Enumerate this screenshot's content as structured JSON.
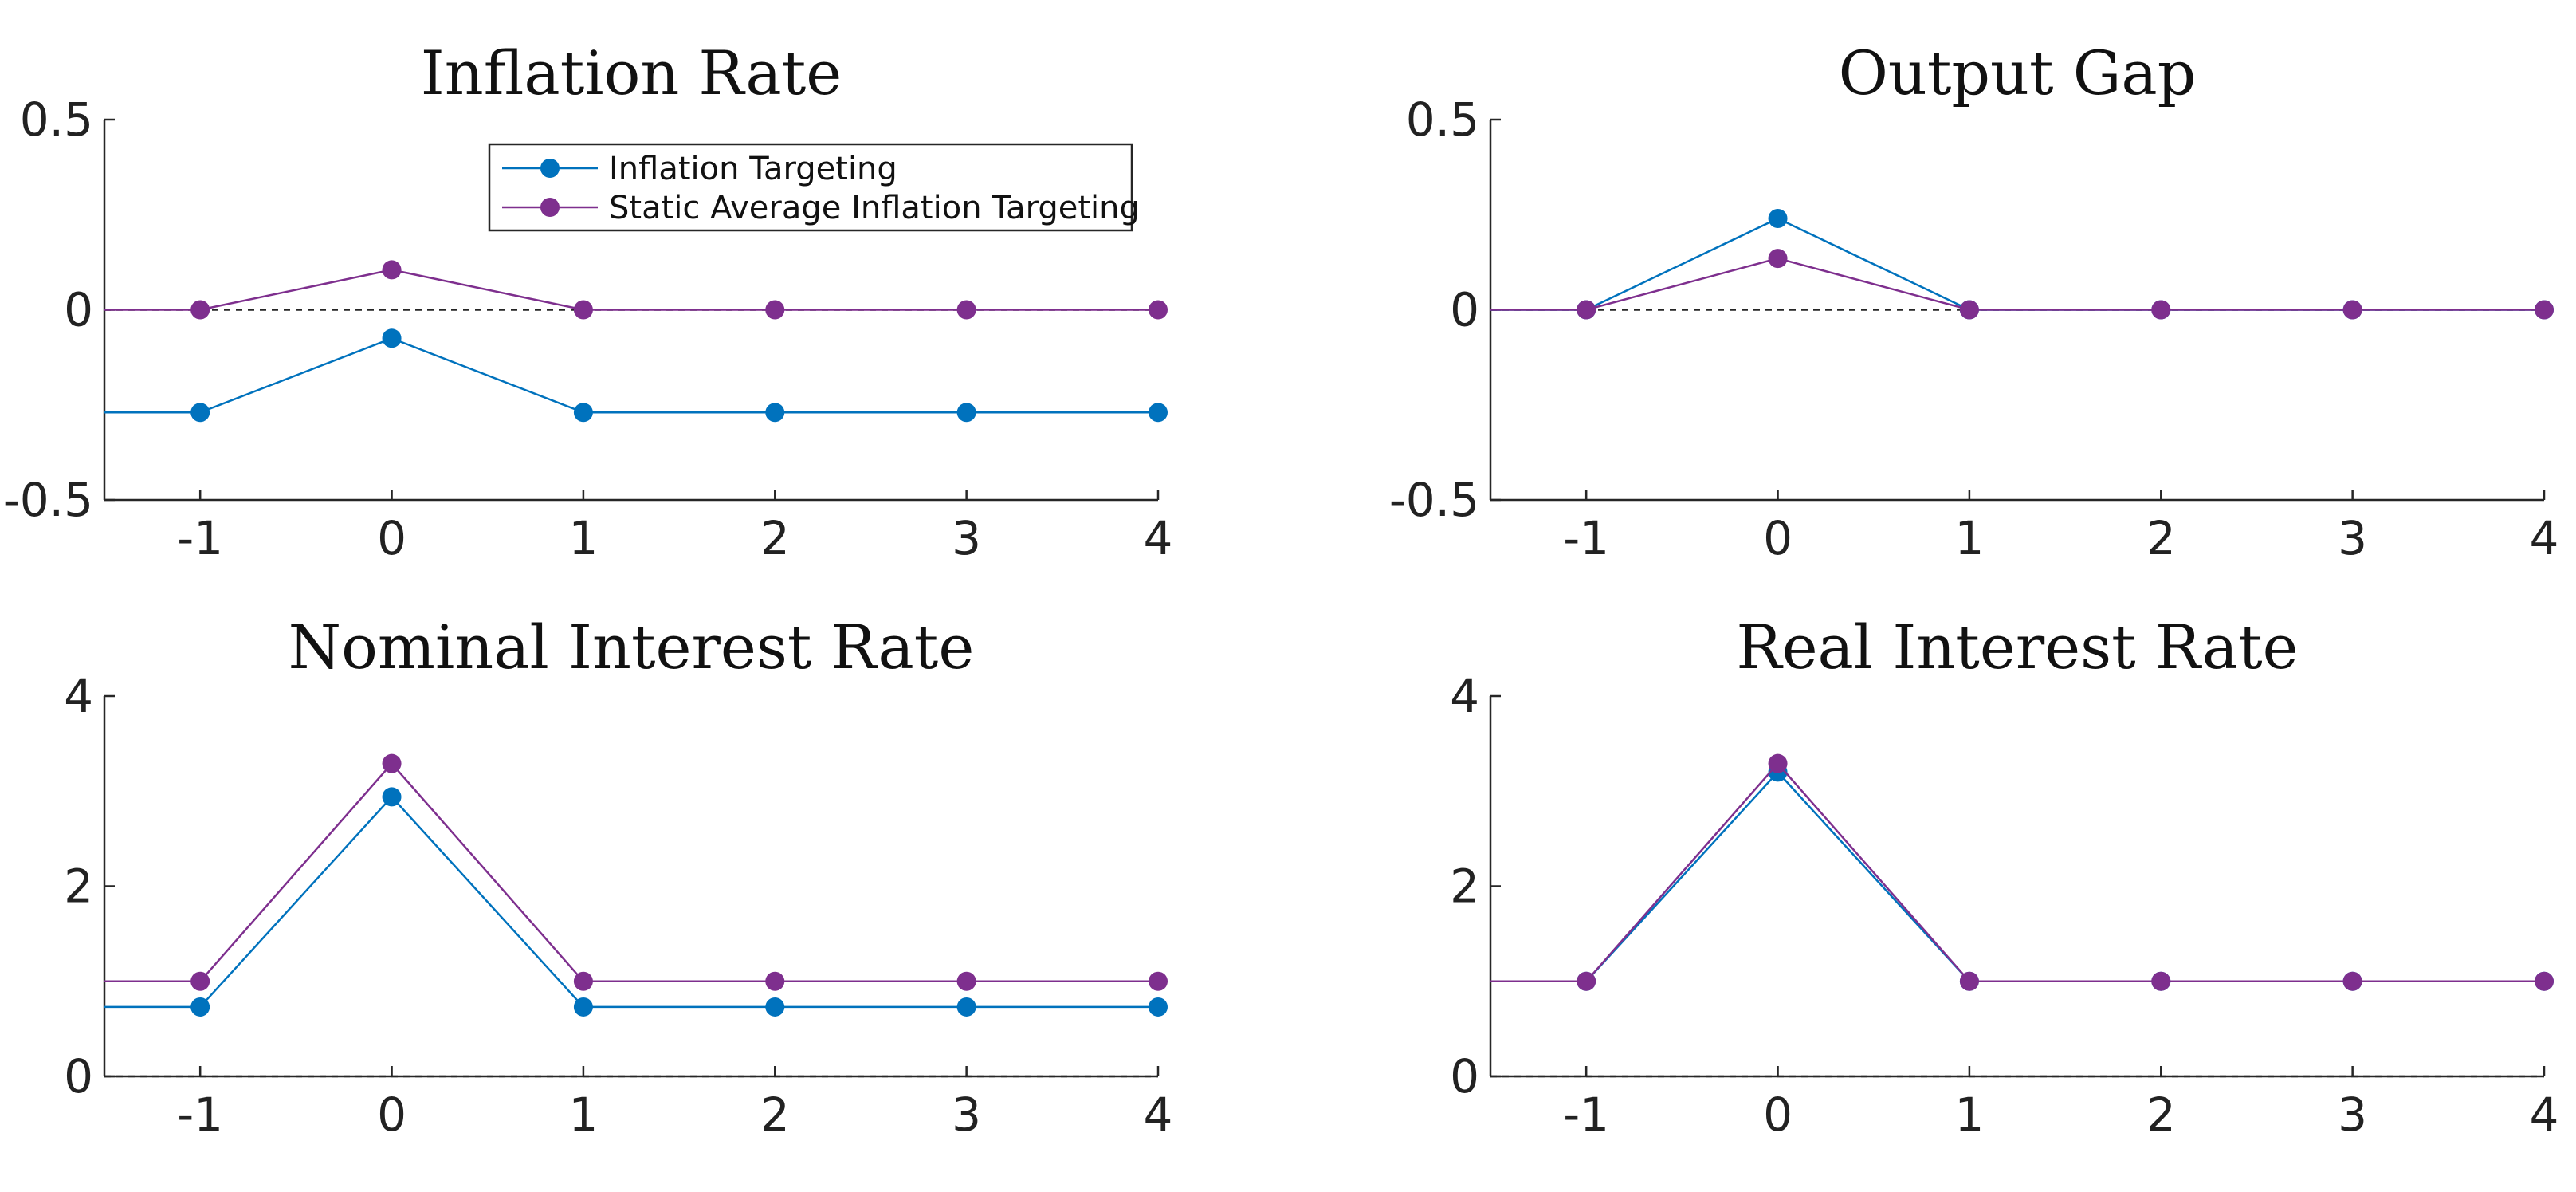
{
  "colors": {
    "inflation_targeting": "#0072BD",
    "static_average": "#7E2F8E"
  },
  "legend": {
    "entries": [
      {
        "label": "Inflation Targeting",
        "color": "#0072BD"
      },
      {
        "label": "Static Average Inflation Targeting",
        "color": "#7E2F8E"
      }
    ],
    "location": "top-right"
  },
  "chart_data": [
    {
      "type": "line",
      "title": "Inflation Rate",
      "xlabel": "",
      "ylabel": "",
      "x": [
        -1,
        0,
        1,
        2,
        3,
        4
      ],
      "xlim": [
        -1.5,
        4
      ],
      "ylim": [
        -0.5,
        0.5
      ],
      "xticks": [
        "-1",
        "0",
        "1",
        "2",
        "3",
        "4"
      ],
      "yticks": [
        {
          "value": 0.5,
          "label": "0.5"
        },
        {
          "value": 0,
          "label": "0"
        },
        {
          "value": -0.5,
          "label": "-0.5"
        }
      ],
      "zero_line": 0,
      "series": [
        {
          "name": "Inflation Targeting",
          "color": "#0072BD",
          "start": -0.27,
          "values": [
            -0.27,
            -0.075,
            -0.27,
            -0.27,
            -0.27,
            -0.27
          ]
        },
        {
          "name": "Static Average Inflation Targeting",
          "color": "#7E2F8E",
          "start": 0,
          "values": [
            0,
            0.105,
            0,
            0,
            0,
            0
          ]
        }
      ]
    },
    {
      "type": "line",
      "title": "Output Gap",
      "xlabel": "",
      "ylabel": "",
      "x": [
        -1,
        0,
        1,
        2,
        3,
        4
      ],
      "xlim": [
        -1.5,
        4
      ],
      "ylim": [
        -0.5,
        0.5
      ],
      "xticks": [
        "-1",
        "0",
        "1",
        "2",
        "3",
        "4"
      ],
      "yticks": [
        {
          "value": 0.5,
          "label": "0.5"
        },
        {
          "value": 0,
          "label": "0"
        },
        {
          "value": -0.5,
          "label": "-0.5"
        }
      ],
      "zero_line": 0,
      "series": [
        {
          "name": "Inflation Targeting",
          "color": "#0072BD",
          "start": 0,
          "values": [
            0,
            0.24,
            0,
            0,
            0,
            0
          ]
        },
        {
          "name": "Static Average Inflation Targeting",
          "color": "#7E2F8E",
          "start": 0,
          "values": [
            0,
            0.135,
            0,
            0,
            0,
            0
          ]
        }
      ]
    },
    {
      "type": "line",
      "title": "Nominal Interest Rate",
      "xlabel": "",
      "ylabel": "",
      "x": [
        -1,
        0,
        1,
        2,
        3,
        4
      ],
      "xlim": [
        -1.5,
        4
      ],
      "ylim": [
        0,
        4
      ],
      "xticks": [
        "-1",
        "0",
        "1",
        "2",
        "3",
        "4"
      ],
      "yticks": [
        {
          "value": 4,
          "label": "4"
        },
        {
          "value": 2,
          "label": "2"
        },
        {
          "value": 0,
          "label": "0"
        }
      ],
      "zero_line": 0,
      "series": [
        {
          "name": "Inflation Targeting",
          "color": "#0072BD",
          "start": 0.73,
          "values": [
            0.73,
            2.94,
            0.73,
            0.73,
            0.73,
            0.73
          ]
        },
        {
          "name": "Static Average Inflation Targeting",
          "color": "#7E2F8E",
          "start": 1.0,
          "values": [
            1.0,
            3.29,
            1.0,
            1.0,
            1.0,
            1.0
          ]
        }
      ]
    },
    {
      "type": "line",
      "title": "Real Interest Rate",
      "xlabel": "",
      "ylabel": "",
      "x": [
        -1,
        0,
        1,
        2,
        3,
        4
      ],
      "xlim": [
        -1.5,
        4
      ],
      "ylim": [
        0,
        4
      ],
      "xticks": [
        "-1",
        "0",
        "1",
        "2",
        "3",
        "4"
      ],
      "yticks": [
        {
          "value": 4,
          "label": "4"
        },
        {
          "value": 2,
          "label": "2"
        },
        {
          "value": 0,
          "label": "0"
        }
      ],
      "zero_line": 0,
      "series": [
        {
          "name": "Inflation Targeting",
          "color": "#0072BD",
          "start": 1.0,
          "values": [
            1.0,
            3.2,
            1.0,
            1.0,
            1.0,
            1.0
          ]
        },
        {
          "name": "Static Average Inflation Targeting",
          "color": "#7E2F8E",
          "start": 1.0,
          "values": [
            1.0,
            3.29,
            1.0,
            1.0,
            1.0,
            1.0
          ]
        }
      ]
    }
  ]
}
